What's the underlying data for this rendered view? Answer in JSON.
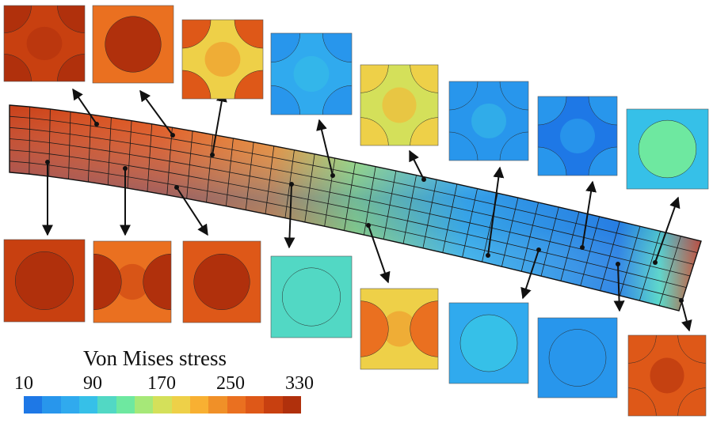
{
  "legend": {
    "title": "Von Mises stress",
    "ticks": [
      "10",
      "90",
      "170",
      "250",
      "330"
    ],
    "colors": [
      "#1e78e6",
      "#2896ec",
      "#30aaee",
      "#36c0e8",
      "#52d8c4",
      "#6ee8a0",
      "#a6e878",
      "#d4e05a",
      "#eed048",
      "#f8b032",
      "#f09028",
      "#ea7020",
      "#de5818",
      "#c84010",
      "#b0300c"
    ]
  },
  "palette": {
    "beam_low": "#2a82e4",
    "beam_mid": "#9fe070",
    "beam_high": "#e2561a",
    "grid": "#1a1a1a",
    "arrow": "#111111"
  },
  "cells": [
    {
      "id": "c1",
      "field": 300,
      "fiber": 330,
      "fiber_pos": "corners"
    },
    {
      "id": "c2",
      "field": 250,
      "fiber": 330,
      "fiber_pos": "center"
    },
    {
      "id": "c3",
      "field": 200,
      "fiber": 270,
      "fiber_pos": "corners"
    },
    {
      "id": "c4",
      "field": 55,
      "fiber": 40,
      "fiber_pos": "corners"
    },
    {
      "id": "c5",
      "field": 165,
      "fiber": 200,
      "fiber_pos": "corners"
    },
    {
      "id": "c6",
      "field": 40,
      "fiber": 35,
      "fiber_pos": "corners"
    },
    {
      "id": "c7",
      "field": 25,
      "fiber": 40,
      "fiber_pos": "corners"
    },
    {
      "id": "c8",
      "field": 95,
      "fiber": 120,
      "fiber_pos": "center"
    },
    {
      "id": "c9",
      "field": 300,
      "fiber": 330,
      "fiber_pos": "center"
    },
    {
      "id": "c10",
      "field": 260,
      "fiber": 320,
      "fiber_pos": "sides"
    },
    {
      "id": "c11",
      "field": 280,
      "fiber": 330,
      "fiber_pos": "center"
    },
    {
      "id": "c12",
      "field": 100,
      "fiber": 115,
      "fiber_pos": "center"
    },
    {
      "id": "c13",
      "field": 190,
      "fiber": 250,
      "fiber_pos": "sides"
    },
    {
      "id": "c14",
      "field": 55,
      "fiber": 95,
      "fiber_pos": "center"
    },
    {
      "id": "c15",
      "field": 40,
      "fiber": 50,
      "fiber_pos": "center"
    },
    {
      "id": "c16",
      "field": 285,
      "fiber": 270,
      "fiber_pos": "corners"
    }
  ]
}
